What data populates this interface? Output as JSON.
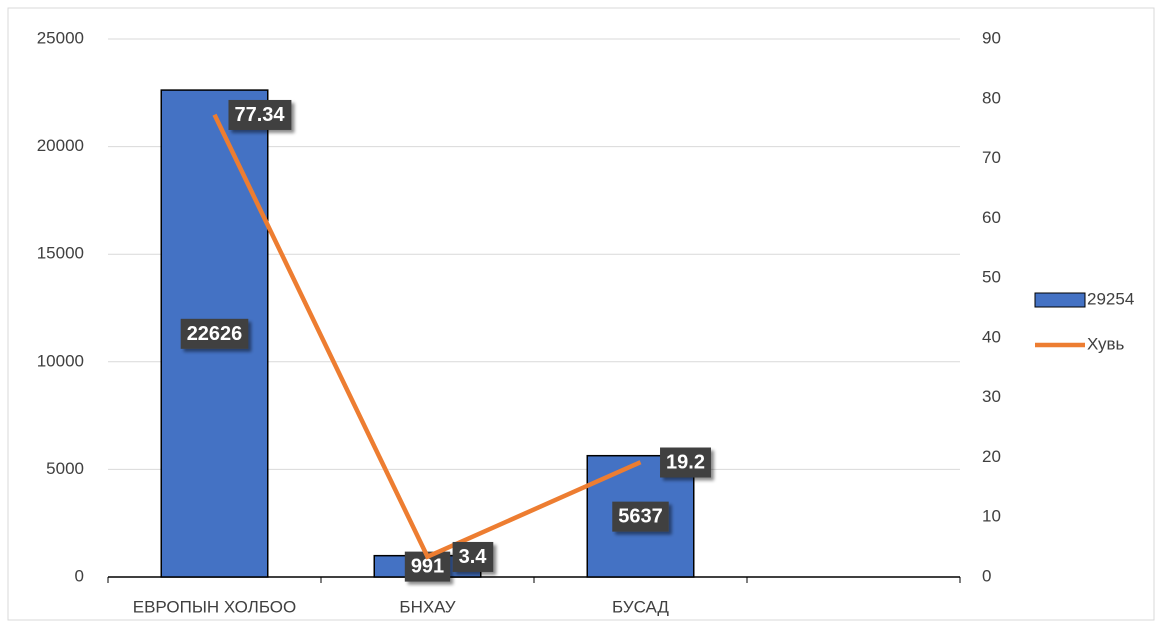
{
  "chart_data": {
    "type": "bar",
    "categories": [
      "ЕВРОПЫН ХОЛБОО",
      "БНХАУ",
      "БУСАД",
      null
    ],
    "series": [
      {
        "name": "29254",
        "color": "#4472c4",
        "values": [
          22626,
          991,
          5637,
          null
        ]
      },
      {
        "name": "Хувь",
        "color": "#ed7d31",
        "type": "line",
        "axis": "y2",
        "values": [
          77.34,
          3.4,
          19.2,
          null
        ]
      }
    ],
    "ylim": [
      0,
      25000
    ],
    "yticks": [
      0,
      5000,
      10000,
      15000,
      20000,
      25000
    ],
    "y2lim": [
      0,
      90
    ],
    "y2ticks": [
      0,
      10,
      20,
      30,
      40,
      50,
      60,
      70,
      80,
      90
    ],
    "grid": true,
    "data_labels": true,
    "legend": "right"
  }
}
